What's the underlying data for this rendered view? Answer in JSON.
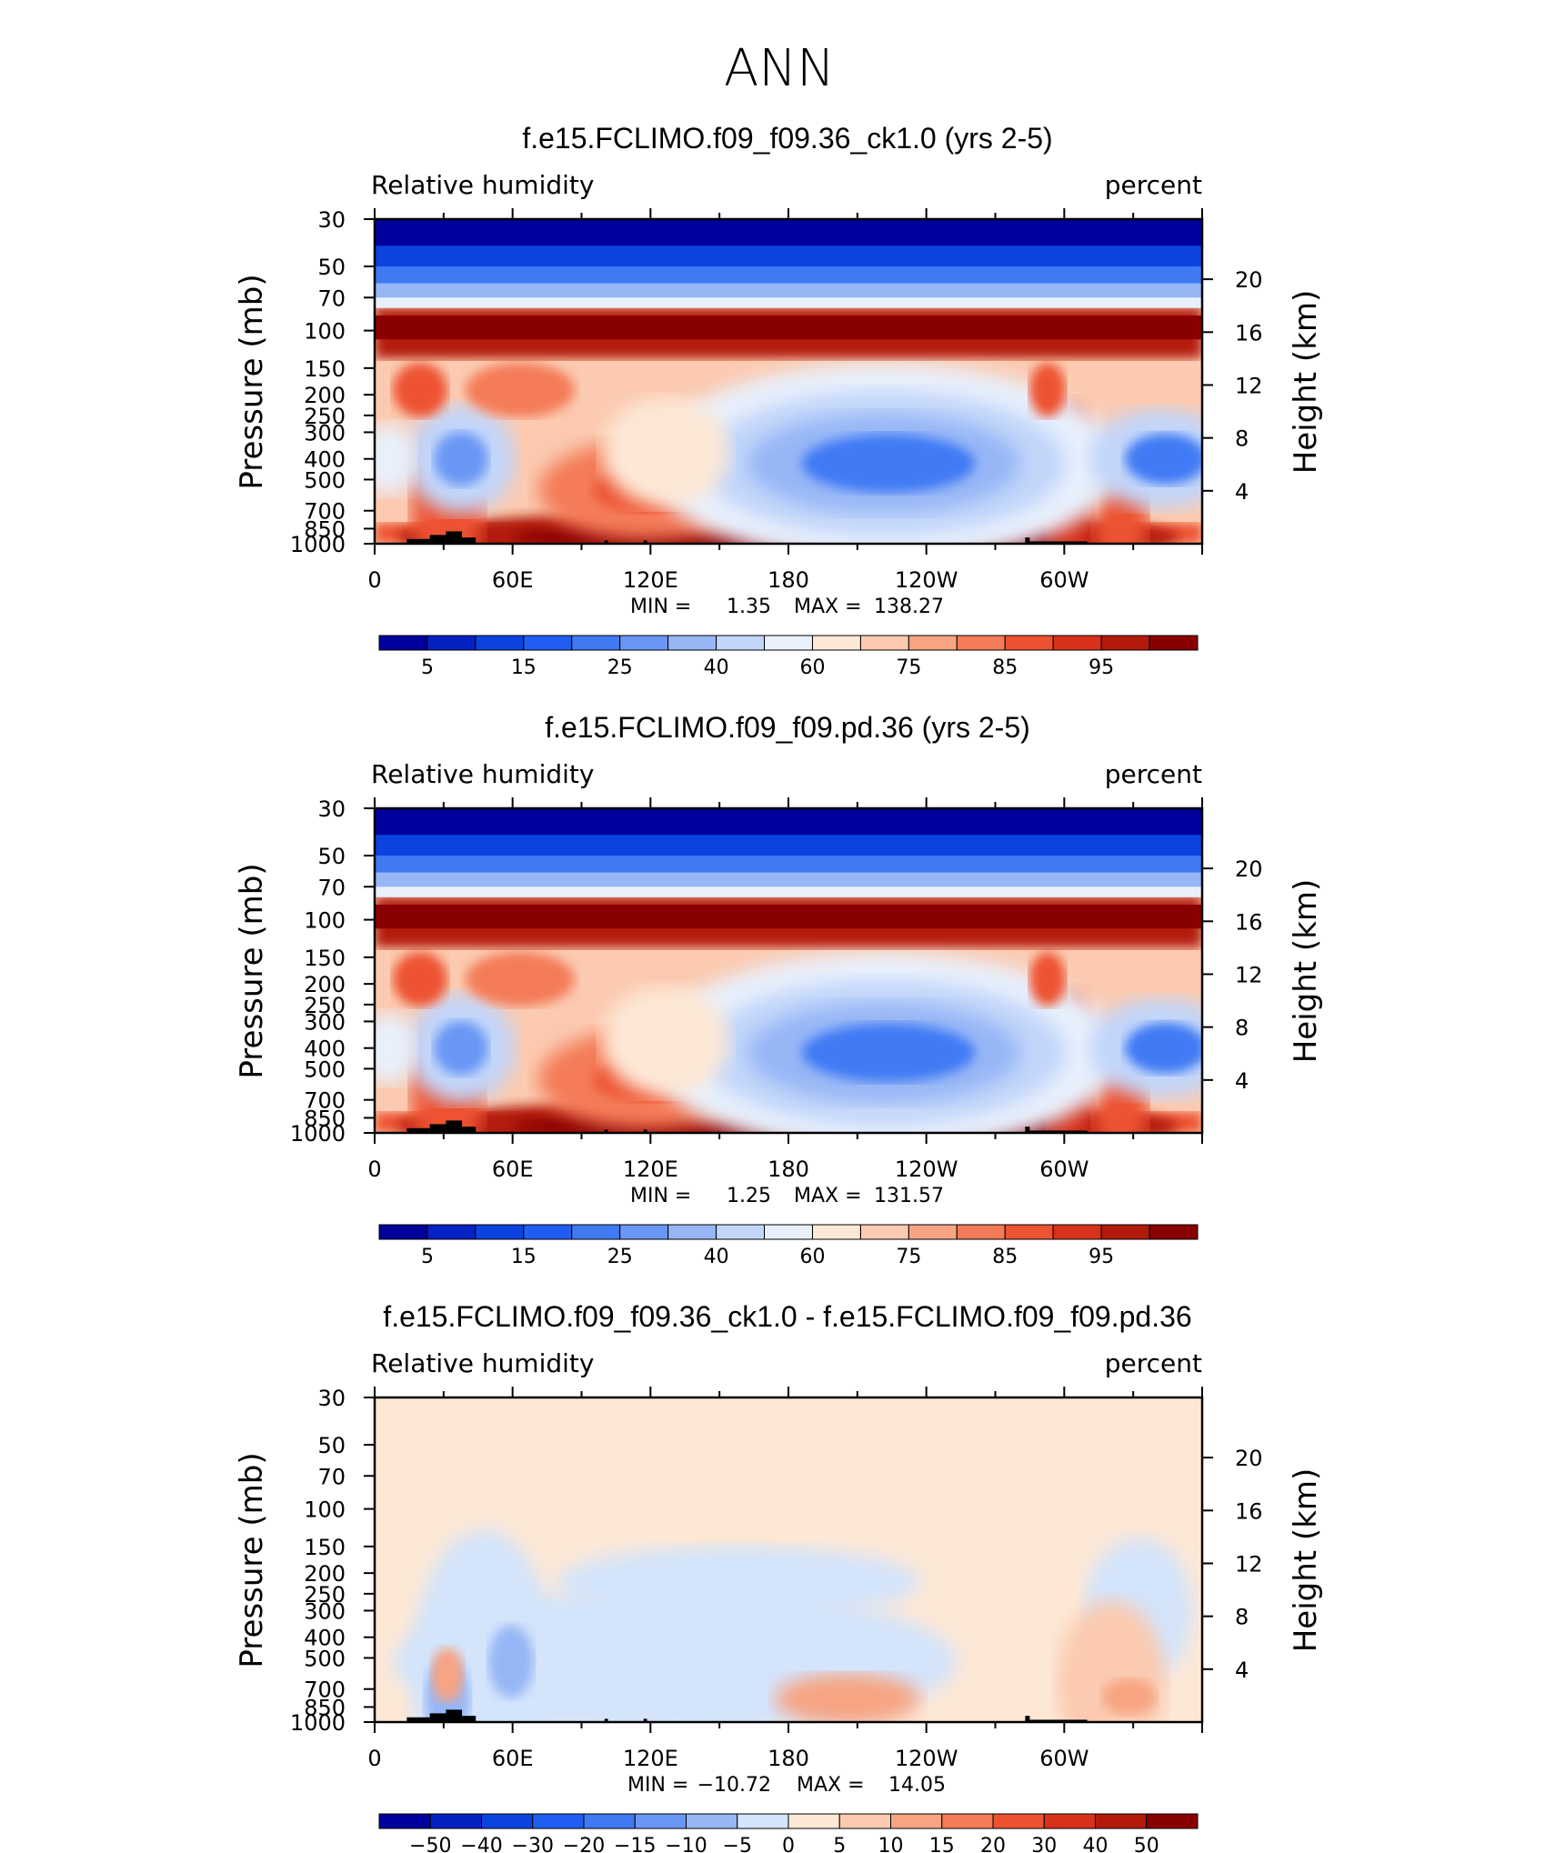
{
  "figure": {
    "title": "ANN",
    "field_label": "Relative humidity",
    "units_label": "percent"
  },
  "chart_data": [
    {
      "type": "heatmap",
      "title": "f.e15.FCLIMO.f09_f09.36_ck1.0 (yrs 2-5)",
      "left_label": "Relative humidity",
      "right_label": "percent",
      "ylabel": "Pressure (mb)",
      "ylabel2": "Height (km)",
      "x_ticks": [
        "0",
        "60E",
        "120E",
        "180",
        "120W",
        "60W"
      ],
      "x_range": [
        0,
        360
      ],
      "y_ticks": [
        "30",
        "50",
        "70",
        "100",
        "150",
        "200",
        "250",
        "300",
        "400",
        "500",
        "700",
        "850",
        "1000"
      ],
      "y_range": [
        30,
        1000
      ],
      "y_scale": "log",
      "y2_ticks": [
        "20",
        "16",
        "12",
        "8",
        "4"
      ],
      "min_label": "MIN =",
      "min_value": "1.35",
      "max_label": "MAX =",
      "max_value": "138.27",
      "colorbar_levels": [
        "5",
        "15",
        "25",
        "40",
        "60",
        "75",
        "85",
        "95"
      ]
    },
    {
      "type": "heatmap",
      "title": "f.e15.FCLIMO.f09_f09.pd.36 (yrs 2-5)",
      "left_label": "Relative humidity",
      "right_label": "percent",
      "ylabel": "Pressure (mb)",
      "ylabel2": "Height (km)",
      "x_ticks": [
        "0",
        "60E",
        "120E",
        "180",
        "120W",
        "60W"
      ],
      "x_range": [
        0,
        360
      ],
      "y_ticks": [
        "30",
        "50",
        "70",
        "100",
        "150",
        "200",
        "250",
        "300",
        "400",
        "500",
        "700",
        "850",
        "1000"
      ],
      "y_range": [
        30,
        1000
      ],
      "y_scale": "log",
      "y2_ticks": [
        "20",
        "16",
        "12",
        "8",
        "4"
      ],
      "min_label": "MIN =",
      "min_value": "1.25",
      "max_label": "MAX =",
      "max_value": "131.57",
      "colorbar_levels": [
        "5",
        "15",
        "25",
        "40",
        "60",
        "75",
        "85",
        "95"
      ]
    },
    {
      "type": "heatmap",
      "title": "f.e15.FCLIMO.f09_f09.36_ck1.0 - f.e15.FCLIMO.f09_f09.pd.36",
      "left_label": "Relative humidity",
      "right_label": "percent",
      "ylabel": "Pressure (mb)",
      "ylabel2": "Height (km)",
      "x_ticks": [
        "0",
        "60E",
        "120E",
        "180",
        "120W",
        "60W"
      ],
      "x_range": [
        0,
        360
      ],
      "y_ticks": [
        "30",
        "50",
        "70",
        "100",
        "150",
        "200",
        "250",
        "300",
        "400",
        "500",
        "700",
        "850",
        "1000"
      ],
      "y_range": [
        30,
        1000
      ],
      "y_scale": "log",
      "y2_ticks": [
        "20",
        "16",
        "12",
        "8",
        "4"
      ],
      "min_label": "MIN =",
      "min_value": "−10.72",
      "max_label": "MAX =",
      "max_value": "14.05",
      "colorbar_levels": [
        "−50",
        "−40",
        "−30",
        "−20",
        "−15",
        "−10",
        "−5",
        "0",
        "5",
        "10",
        "15",
        "20",
        "30",
        "40",
        "50"
      ]
    }
  ],
  "colors": {
    "absolute_palette": [
      "#00009c",
      "#0421c4",
      "#0a43e0",
      "#1f5ef0",
      "#3f7af4",
      "#6a97f5",
      "#96b6f6",
      "#c2d6fa",
      "#e8f0fc",
      "#fde8d6",
      "#fbcab0",
      "#f7a482",
      "#f47b58",
      "#ed5331",
      "#d8331a",
      "#b31a0c",
      "#8a0000"
    ],
    "diff_palette": [
      "#00009c",
      "#0421c4",
      "#0a43e0",
      "#1f5ef0",
      "#3f7af4",
      "#6a97f5",
      "#96b6f6",
      "#d3e4fb",
      "#fde8d6",
      "#fbcab0",
      "#f7a482",
      "#f47b58",
      "#ed5331",
      "#d8331a",
      "#b31a0c",
      "#8a0000"
    ],
    "topography": "#000000"
  }
}
